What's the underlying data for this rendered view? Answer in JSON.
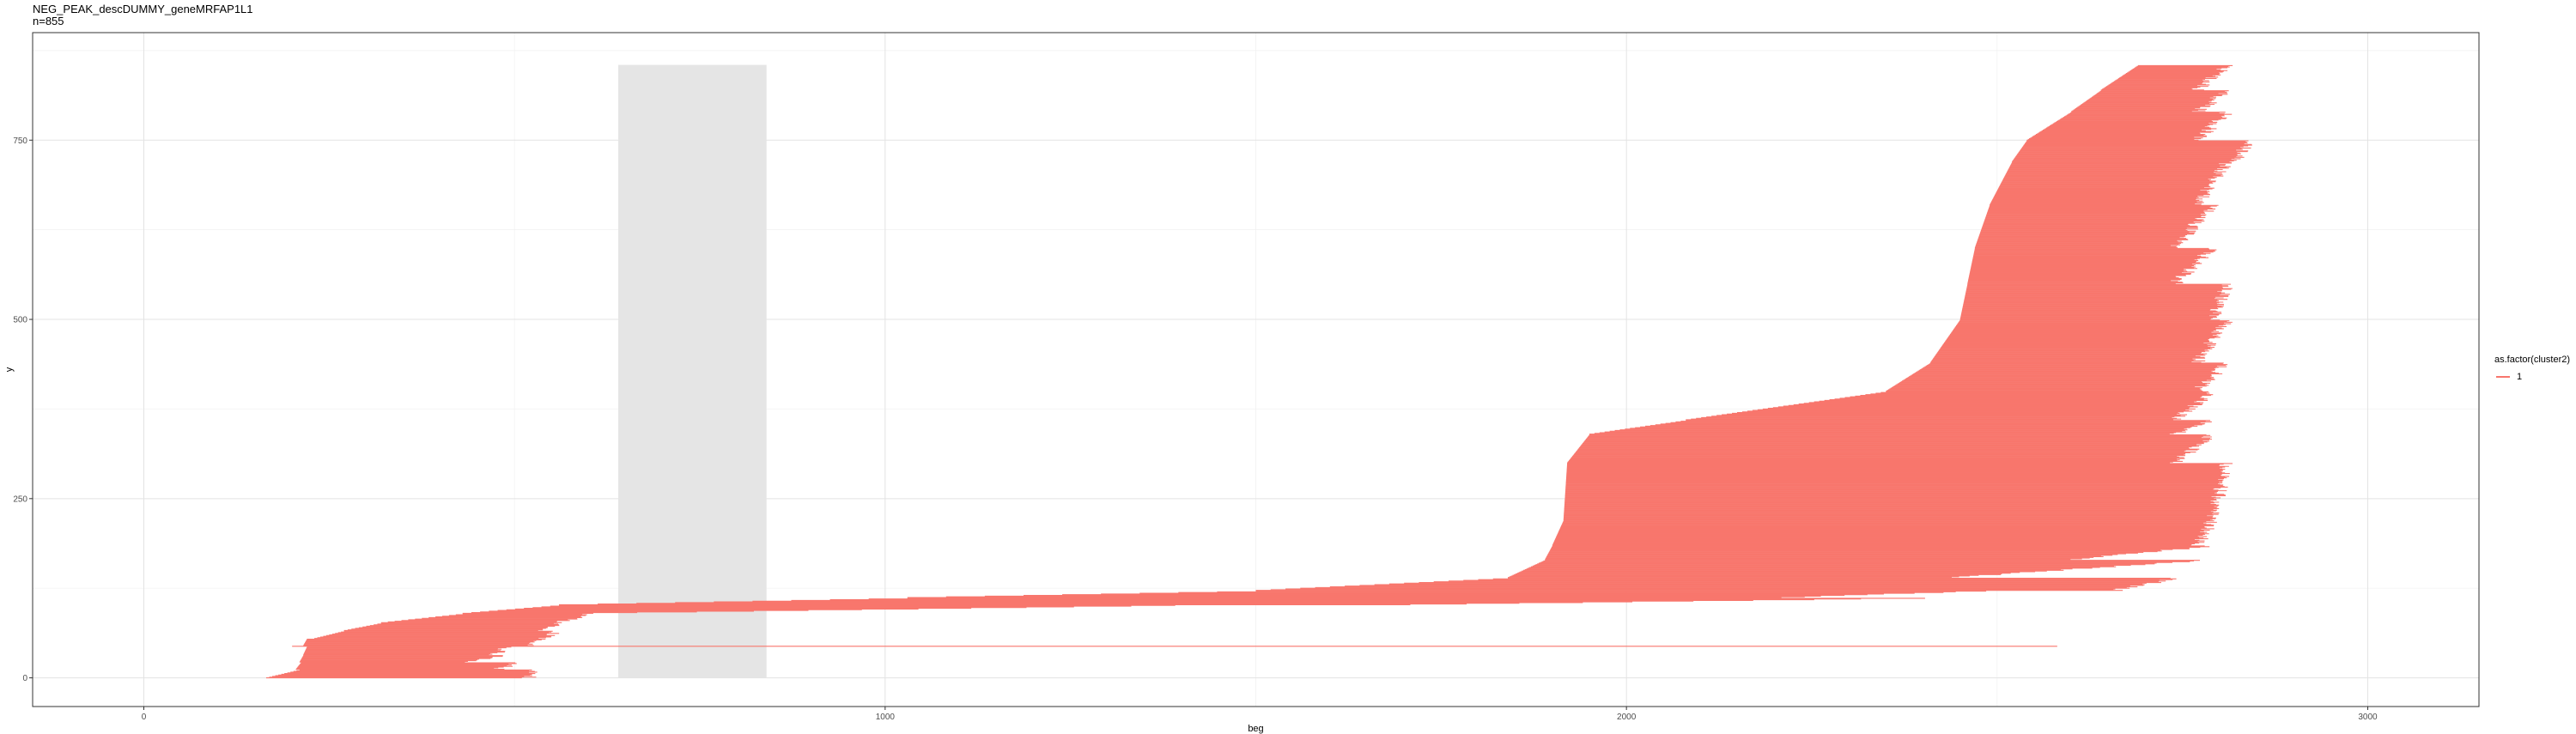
{
  "title": "NEG_PEAK_descDUMMY_geneMRFAP1L1",
  "subtitle": "n=855",
  "chart_data": {
    "type": "line",
    "xlabel": "beg",
    "ylabel": "y",
    "xlim": [
      -150,
      3150
    ],
    "ylim": [
      -40,
      900
    ],
    "x_ticks": [
      0,
      1000,
      2000,
      3000
    ],
    "y_ticks": [
      0,
      250,
      500,
      750
    ],
    "grid": true,
    "legend_title": "as.factor(cluster2)",
    "legend_position": "right",
    "series": [
      {
        "name": "1",
        "color": "#F8766D"
      }
    ],
    "shaded_region": {
      "x": [
        640,
        840
      ],
      "y": [
        0,
        855
      ],
      "color": "#E5E5E5"
    },
    "segments": [
      {
        "y": [
          0,
          12
        ],
        "beg": [
          165,
          210
        ],
        "end": [
          520,
          530
        ]
      },
      {
        "y": [
          12,
          22
        ],
        "beg": [
          205,
          212
        ],
        "end": [
          480,
          500
        ]
      },
      {
        "y": [
          22,
          32
        ],
        "beg": [
          210,
          215
        ],
        "end": [
          430,
          480
        ]
      },
      {
        "y": [
          32,
          44
        ],
        "beg": [
          215,
          220
        ],
        "end": [
          470,
          490
        ]
      },
      {
        "y": [
          44,
          45
        ],
        "beg": [
          200,
          200
        ],
        "end": [
          2585,
          2585
        ]
      },
      {
        "y": [
          45,
          55
        ],
        "beg": [
          215,
          220
        ],
        "end": [
          520,
          540
        ]
      },
      {
        "y": [
          55,
          66
        ],
        "beg": [
          230,
          270
        ],
        "end": [
          540,
          560
        ]
      },
      {
        "y": [
          66,
          77
        ],
        "beg": [
          270,
          320
        ],
        "end": [
          530,
          560
        ]
      },
      {
        "y": [
          77,
          90
        ],
        "beg": [
          320,
          430
        ],
        "end": [
          560,
          600
        ]
      },
      {
        "y": [
          90,
          102
        ],
        "beg": [
          430,
          560
        ],
        "end": [
          600,
          1400
        ]
      },
      {
        "y": [
          102,
          112
        ],
        "beg": [
          560,
          1030
        ],
        "end": [
          1700,
          2400
        ]
      },
      {
        "y": [
          112,
          122
        ],
        "beg": [
          1030,
          1500
        ],
        "end": [
          2200,
          2480
        ]
      },
      {
        "y": [
          122,
          140
        ],
        "beg": [
          1500,
          1840
        ],
        "end": [
          2660,
          2740
        ]
      },
      {
        "y": [
          140,
          165
        ],
        "beg": [
          1840,
          1890
        ],
        "end": [
          2440,
          2780
        ]
      },
      {
        "y": [
          165,
          185
        ],
        "beg": [
          1890,
          1900
        ],
        "end": [
          2600,
          2790
        ]
      },
      {
        "y": [
          185,
          220
        ],
        "beg": [
          1900,
          1915
        ],
        "end": [
          2770,
          2790
        ]
      },
      {
        "y": [
          220,
          300
        ],
        "beg": [
          1915,
          1920
        ],
        "end": [
          2790,
          2810
        ]
      },
      {
        "y": [
          300,
          340
        ],
        "beg": [
          1920,
          1950
        ],
        "end": [
          2740,
          2790
        ]
      },
      {
        "y": [
          340,
          360
        ],
        "beg": [
          1950,
          2080
        ],
        "end": [
          2740,
          2790
        ]
      },
      {
        "y": [
          360,
          400
        ],
        "beg": [
          2080,
          2350
        ],
        "end": [
          2740,
          2790
        ]
      },
      {
        "y": [
          400,
          440
        ],
        "beg": [
          2350,
          2410
        ],
        "end": [
          2770,
          2810
        ]
      },
      {
        "y": [
          440,
          500
        ],
        "beg": [
          2410,
          2450
        ],
        "end": [
          2770,
          2810
        ]
      },
      {
        "y": [
          500,
          550
        ],
        "beg": [
          2450,
          2460
        ],
        "end": [
          2790,
          2810
        ]
      },
      {
        "y": [
          550,
          600
        ],
        "beg": [
          2460,
          2470
        ],
        "end": [
          2740,
          2790
        ]
      },
      {
        "y": [
          600,
          660
        ],
        "beg": [
          2470,
          2490
        ],
        "end": [
          2740,
          2790
        ]
      },
      {
        "y": [
          660,
          720
        ],
        "beg": [
          2490,
          2520
        ],
        "end": [
          2770,
          2810
        ]
      },
      {
        "y": [
          720,
          750
        ],
        "beg": [
          2520,
          2540
        ],
        "end": [
          2820,
          2840
        ]
      },
      {
        "y": [
          750,
          790
        ],
        "beg": [
          2540,
          2600
        ],
        "end": [
          2770,
          2810
        ]
      },
      {
        "y": [
          790,
          820
        ],
        "beg": [
          2600,
          2640
        ],
        "end": [
          2770,
          2810
        ]
      },
      {
        "y": [
          820,
          855
        ],
        "beg": [
          2640,
          2690
        ],
        "end": [
          2770,
          2810
        ]
      }
    ]
  }
}
